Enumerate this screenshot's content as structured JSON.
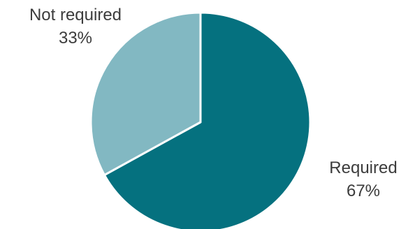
{
  "chart_data": {
    "type": "pie",
    "title": "",
    "start_angle_deg": 0,
    "direction": "clockwise",
    "slices": [
      {
        "label": "Required",
        "value": 67,
        "display": "67%",
        "color": "#05717f"
      },
      {
        "label": "Not required",
        "value": 33,
        "display": "33%",
        "color": "#82b8c2"
      }
    ]
  }
}
